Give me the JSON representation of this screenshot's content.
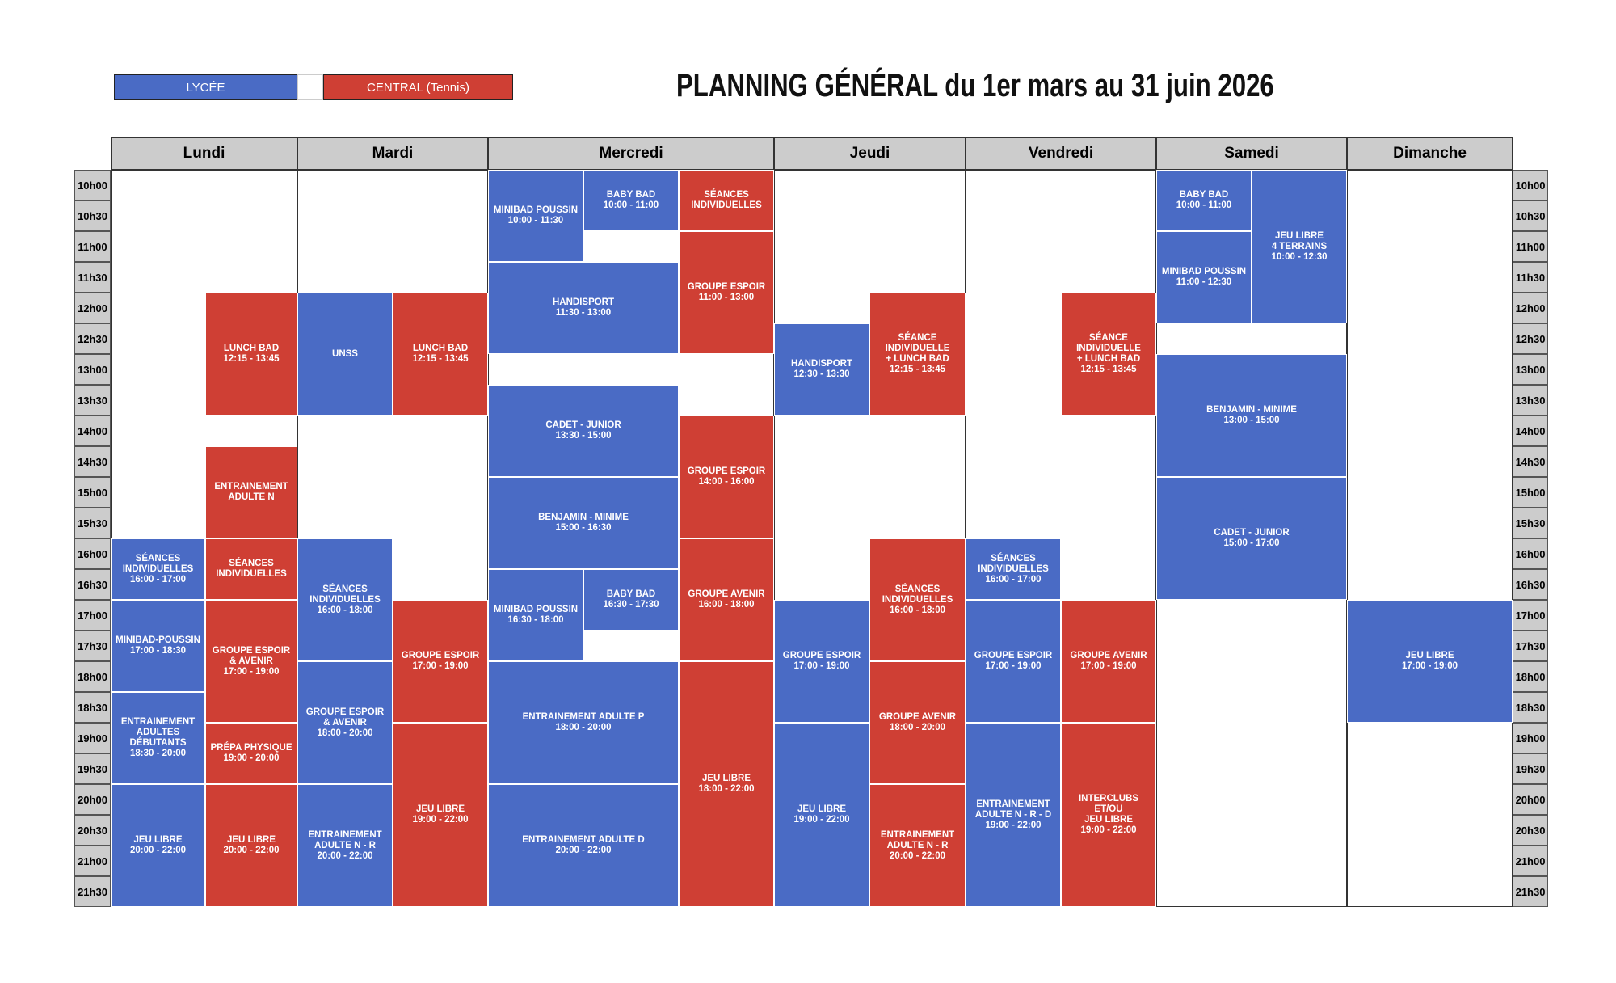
{
  "legend": [
    "LYCÉE",
    "CENTRAL (Tennis)"
  ],
  "title": "PLANNING GÉNÉRAL du 1er mars au 31 juin 2026",
  "days": [
    "Lundi",
    "Mardi",
    "Mercredi",
    "Jeudi",
    "Vendredi",
    "Samedi",
    "Dimanche"
  ],
  "times": [
    "10h00",
    "10h30",
    "11h00",
    "11h30",
    "12h00",
    "12h30",
    "13h00",
    "13h30",
    "14h00",
    "14h30",
    "15h00",
    "15h30",
    "16h00",
    "16h30",
    "17h00",
    "17h30",
    "18h00",
    "18h30",
    "19h00",
    "19h30",
    "20h00",
    "20h30",
    "21h00",
    "21h30"
  ],
  "events": [
    {
      "lines": [
        "LUNCH BAD",
        "12:15 - 13:45"
      ]
    },
    {
      "lines": [
        "ENTRAINEMENT",
        "ADULTE N"
      ]
    },
    {
      "lines": [
        "SÉANCES",
        "INDIVIDUELLES",
        "16:00 - 17:00"
      ]
    },
    {
      "lines": [
        "SÉANCES",
        "INDIVIDUELLES"
      ]
    },
    {
      "lines": [
        "MINIBAD-POUSSIN",
        "17:00 - 18:30"
      ]
    },
    {
      "lines": [
        "GROUPE ESPOIR",
        "& AVENIR",
        "17:00 - 19:00"
      ]
    },
    {
      "lines": [
        "ENTRAINEMENT",
        "ADULTES",
        "DÉBUTANTS",
        "18:30 - 20:00"
      ]
    },
    {
      "lines": [
        "PRÉPA PHYSIQUE",
        "19:00 - 20:00"
      ]
    },
    {
      "lines": [
        "JEU LIBRE",
        "20:00 - 22:00"
      ]
    },
    {
      "lines": [
        "JEU LIBRE",
        "20:00 - 22:00"
      ]
    },
    {
      "lines": [
        "UNSS"
      ]
    },
    {
      "lines": [
        "LUNCH BAD",
        "12:15 - 13:45"
      ]
    },
    {
      "lines": [
        "SÉANCES",
        "INDIVIDUELLES",
        "16:00 - 18:00"
      ]
    },
    {
      "lines": [
        "GROUPE ESPOIR",
        "17:00 - 19:00"
      ]
    },
    {
      "lines": [
        "GROUPE ESPOIR",
        "& AVENIR",
        "18:00 - 20:00"
      ]
    },
    {
      "lines": [
        "JEU LIBRE",
        "19:00 - 22:00"
      ]
    },
    {
      "lines": [
        "ENTRAINEMENT",
        "ADULTE N - R",
        "20:00 - 22:00"
      ]
    },
    {
      "lines": [
        "MINIBAD POUSSIN",
        "10:00 - 11:30"
      ]
    },
    {
      "lines": [
        "BABY BAD",
        "10:00 - 11:00"
      ]
    },
    {
      "lines": [
        "SÉANCES",
        "INDIVIDUELLES"
      ]
    },
    {
      "lines": [
        "GROUPE ESPOIR",
        "11:00 - 13:00"
      ]
    },
    {
      "lines": [
        "HANDISPORT",
        "11:30 - 13:00"
      ]
    },
    {
      "lines": [
        "CADET - JUNIOR",
        "13:30 - 15:00"
      ]
    },
    {
      "lines": [
        "GROUPE ESPOIR",
        "14:00 - 16:00"
      ]
    },
    {
      "lines": [
        "BENJAMIN - MINIME",
        "15:00 - 16:30"
      ]
    },
    {
      "lines": [
        "MINIBAD POUSSIN",
        "16:30 - 18:00"
      ]
    },
    {
      "lines": [
        "BABY BAD",
        "16:30 - 17:30"
      ]
    },
    {
      "lines": [
        "GROUPE AVENIR",
        "16:00 - 18:00"
      ]
    },
    {
      "lines": [
        "ENTRAINEMENT ADULTE P",
        "18:00 - 20:00"
      ]
    },
    {
      "lines": [
        "JEU LIBRE",
        "18:00 - 22:00"
      ]
    },
    {
      "lines": [
        "ENTRAINEMENT ADULTE D",
        "20:00 - 22:00"
      ]
    },
    {
      "lines": [
        "HANDISPORT",
        "12:30 - 13:30"
      ]
    },
    {
      "lines": [
        "SÉANCE",
        "INDIVIDUELLE",
        "+ LUNCH BAD",
        "12:15 - 13:45"
      ]
    },
    {
      "lines": [
        "SÉANCES",
        "INDIVIDUELLES",
        "16:00 - 18:00"
      ]
    },
    {
      "lines": [
        "GROUPE ESPOIR",
        "17:00 - 19:00"
      ]
    },
    {
      "lines": [
        "GROUPE AVENIR",
        "18:00 - 20:00"
      ]
    },
    {
      "lines": [
        "JEU LIBRE",
        "19:00 - 22:00"
      ]
    },
    {
      "lines": [
        "ENTRAINEMENT",
        "ADULTE N - R",
        "20:00 - 22:00"
      ]
    },
    {
      "lines": [
        "SÉANCE",
        "INDIVIDUELLE",
        "+ LUNCH BAD",
        "12:15 - 13:45"
      ]
    },
    {
      "lines": [
        "SÉANCES",
        "INDIVIDUELLES",
        "16:00 - 17:00"
      ]
    },
    {
      "lines": [
        "GROUPE ESPOIR",
        "17:00 - 19:00"
      ]
    },
    {
      "lines": [
        "GROUPE AVENIR",
        "17:00 - 19:00"
      ]
    },
    {
      "lines": [
        "ENTRAINEMENT",
        "ADULTE N - R - D",
        "19:00 - 22:00"
      ]
    },
    {
      "lines": [
        "INTERCLUBS",
        "ET/OU",
        "JEU LIBRE",
        "19:00 - 22:00"
      ]
    },
    {
      "lines": [
        "BABY BAD",
        "10:00 - 11:00"
      ]
    },
    {
      "lines": [
        "JEU LIBRE",
        "4 TERRAINS",
        "10:00 - 12:30"
      ]
    },
    {
      "lines": [
        "MINIBAD POUSSIN",
        "11:00 - 12:30"
      ]
    },
    {
      "lines": [
        "BENJAMIN - MINIME",
        "13:00 - 15:00"
      ]
    },
    {
      "lines": [
        "CADET - JUNIOR",
        "15:00 - 17:00"
      ]
    },
    {
      "lines": [
        "JEU LIBRE",
        "17:00 - 19:00"
      ]
    }
  ]
}
